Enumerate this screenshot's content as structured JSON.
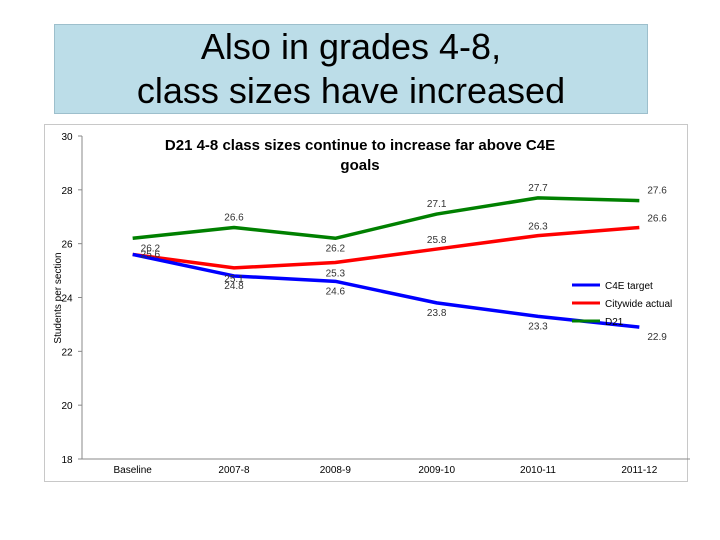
{
  "slide": {
    "title_lines": [
      "Also in grades 4-8,",
      "class sizes have increased"
    ]
  },
  "chart_data": {
    "type": "line",
    "title_lines": [
      "D21 4-8 class sizes continue to increase far above C4E",
      "goals"
    ],
    "xlabel": "",
    "ylabel": "Students per section",
    "categories": [
      "Baseline",
      "2007-8",
      "2008-9",
      "2009-10",
      "2010-11",
      "2011-12"
    ],
    "ylim": [
      18,
      30
    ],
    "yticks": [
      18,
      20,
      22,
      24,
      26,
      28,
      30
    ],
    "grid": false,
    "legend_position": "right",
    "series": [
      {
        "name": "C4E target",
        "color": "#0000ff",
        "values": [
          25.6,
          24.8,
          24.6,
          23.8,
          23.3,
          22.9
        ],
        "labels": [
          "25.6",
          "24.8",
          "24.6",
          "23.8",
          "23.3",
          "22.9"
        ]
      },
      {
        "name": "Citywide actual",
        "color": "#ff0000",
        "values": [
          25.6,
          25.1,
          25.3,
          25.8,
          26.3,
          26.6
        ],
        "labels": [
          "",
          "25.1",
          "25.3",
          "25.8",
          "26.3",
          "26.6"
        ]
      },
      {
        "name": "D21",
        "color": "#008000",
        "values": [
          26.2,
          26.6,
          26.2,
          27.1,
          27.7,
          27.6
        ],
        "labels": [
          "26.2",
          "26.6",
          "26.2",
          "27.1",
          "27.7",
          "27.6"
        ]
      }
    ]
  }
}
